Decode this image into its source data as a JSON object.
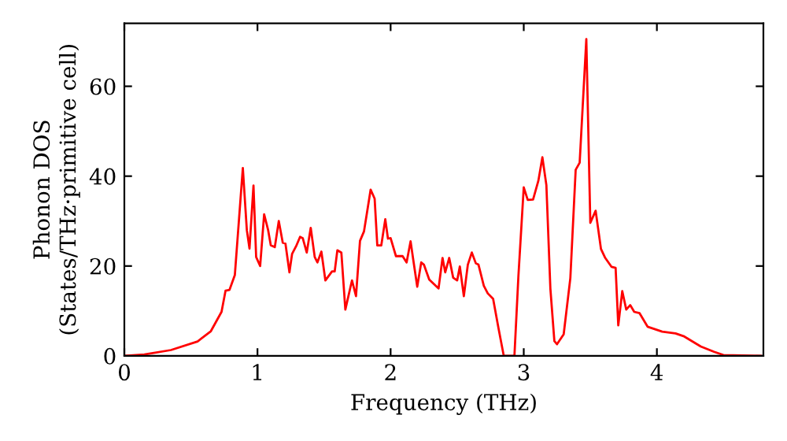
{
  "chart_data": {
    "type": "line",
    "xlabel": "Frequency (THz)",
    "ylabel": "Phonon DOS\n(States/THz·primitive cell)",
    "xlim": [
      0,
      4.8
    ],
    "ylim": [
      0,
      74
    ],
    "xticks": [
      0,
      1,
      2,
      3,
      4
    ],
    "yticks": [
      0,
      20,
      40,
      60
    ],
    "grid": false,
    "legend": false,
    "marker": "none",
    "line_style": "solid",
    "series": [
      {
        "color": "#ff0000",
        "x": [
          0,
          0.15,
          0.35,
          0.55,
          0.65,
          0.73,
          0.76,
          0.79,
          0.83,
          0.89,
          0.92,
          0.94,
          0.97,
          0.99,
          1.02,
          1.05,
          1.08,
          1.1,
          1.13,
          1.16,
          1.19,
          1.21,
          1.24,
          1.26,
          1.29,
          1.32,
          1.34,
          1.37,
          1.4,
          1.43,
          1.45,
          1.48,
          1.51,
          1.56,
          1.58,
          1.6,
          1.63,
          1.66,
          1.71,
          1.74,
          1.77,
          1.8,
          1.82,
          1.85,
          1.88,
          1.9,
          1.93,
          1.96,
          1.98,
          2.0,
          2.04,
          2.09,
          2.12,
          2.15,
          2.17,
          2.2,
          2.23,
          2.25,
          2.29,
          2.36,
          2.39,
          2.41,
          2.44,
          2.47,
          2.5,
          2.52,
          2.55,
          2.58,
          2.61,
          2.64,
          2.66,
          2.7,
          2.73,
          2.77,
          2.81,
          2.85,
          2.93,
          2.96,
          3.0,
          3.03,
          3.07,
          3.11,
          3.14,
          3.17,
          3.2,
          3.23,
          3.25,
          3.3,
          3.35,
          3.39,
          3.42,
          3.47,
          3.5,
          3.54,
          3.58,
          3.61,
          3.66,
          3.69,
          3.71,
          3.74,
          3.77,
          3.8,
          3.83,
          3.87,
          3.93,
          4.04,
          4.14,
          4.2,
          4.33,
          4.43,
          4.5,
          4.78
        ],
        "values": [
          0,
          0.3,
          1.3,
          3.2,
          5.5,
          9.8,
          14.5,
          14.7,
          18,
          41.8,
          28,
          23.9,
          37.9,
          22,
          20,
          31.5,
          28,
          24.6,
          24.2,
          30,
          25.2,
          25,
          18.6,
          22.7,
          24.4,
          26.5,
          26.2,
          23,
          28.5,
          22,
          20.8,
          23.2,
          16.8,
          18.8,
          18.8,
          23.5,
          23,
          10.3,
          16.8,
          13.3,
          25.6,
          27.7,
          31.4,
          37,
          35,
          24.6,
          24.6,
          30.4,
          26.1,
          26.2,
          22.2,
          22.2,
          20.8,
          25.5,
          21.4,
          15.4,
          20.8,
          20.3,
          17,
          15,
          21.8,
          18.6,
          21.8,
          17.4,
          16.8,
          19.9,
          13.3,
          20.3,
          23,
          20.6,
          20.3,
          15.6,
          13.9,
          12.7,
          6.2,
          0,
          0,
          17.8,
          37.5,
          34.7,
          34.8,
          39,
          44.2,
          38,
          15,
          3.3,
          2.6,
          4.8,
          17.3,
          41.4,
          43,
          70.5,
          29.6,
          32.3,
          23.8,
          21.9,
          19.8,
          19.6,
          6.8,
          14.4,
          10.3,
          11.3,
          9.8,
          9.5,
          6.5,
          5.4,
          5,
          4.4,
          2.1,
          0.9,
          0.2,
          0
        ]
      }
    ]
  }
}
